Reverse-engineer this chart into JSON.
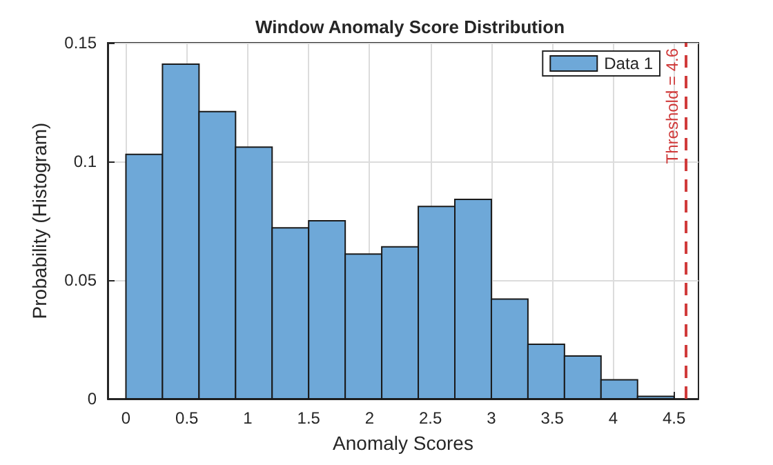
{
  "chart_data": {
    "type": "histogram",
    "title": "Window Anomaly Score Distribution",
    "xlabel": "Anomaly Scores",
    "ylabel": "Probability (Histogram)",
    "bins": [
      0,
      0.3,
      0.6,
      0.9,
      1.2,
      1.5,
      1.8,
      2.1,
      2.4,
      2.7,
      3.0,
      3.3,
      3.6,
      3.9,
      4.2,
      4.5
    ],
    "series": [
      {
        "name": "Data 1",
        "color": "#6ea8d8",
        "values": [
          0.103,
          0.141,
          0.121,
          0.106,
          0.072,
          0.075,
          0.061,
          0.064,
          0.081,
          0.084,
          0.042,
          0.023,
          0.018,
          0.008,
          0.001
        ]
      }
    ],
    "xlim": [
      -0.15,
      4.7
    ],
    "xticks": [
      0,
      0.5,
      1,
      1.5,
      2,
      2.5,
      3,
      3.5,
      4,
      4.5
    ],
    "ylim": [
      0,
      0.15
    ],
    "yticks": [
      0,
      0.05,
      0.1,
      0.15
    ],
    "ref_lines": [
      {
        "axis": "x",
        "value": 4.6,
        "label": "Threshold = 4.6",
        "color": "#d03b3b",
        "line_style": "dashed"
      }
    ],
    "grid": true,
    "legend": "top right"
  }
}
